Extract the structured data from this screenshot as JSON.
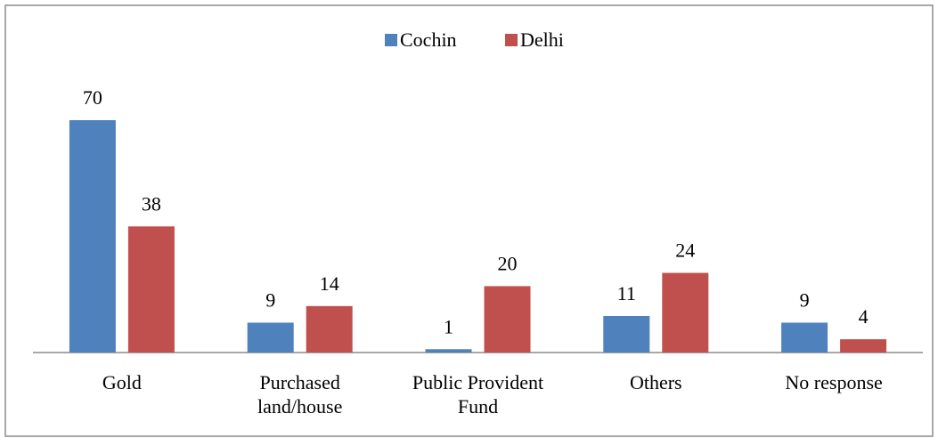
{
  "chart_data": {
    "type": "bar",
    "categories": [
      "Gold",
      "Purchased land/house",
      "Public Provident Fund",
      "Others",
      "No response"
    ],
    "series": [
      {
        "name": "Cochin",
        "color": "#4f81bd",
        "values": [
          70,
          9,
          1,
          11,
          9
        ]
      },
      {
        "name": "Delhi",
        "color": "#c0504d",
        "values": [
          38,
          14,
          20,
          24,
          4
        ]
      }
    ],
    "legend": "top"
  }
}
